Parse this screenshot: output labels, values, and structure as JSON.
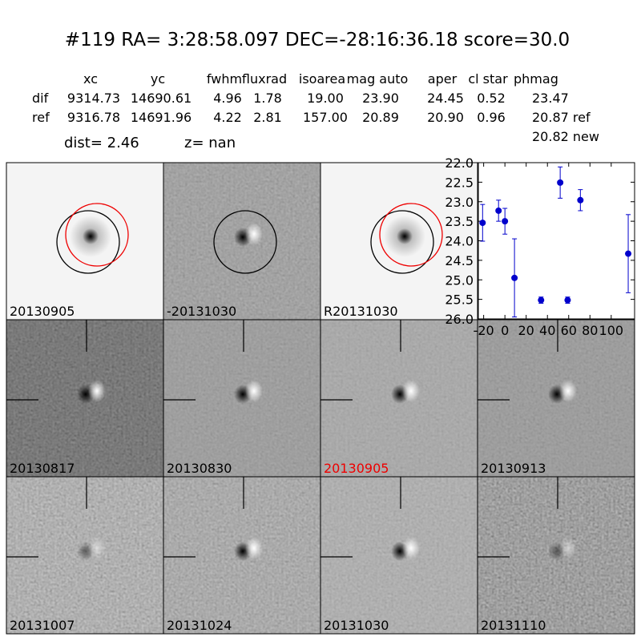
{
  "title": "#119   RA= 3:28:58.097 DEC=-28:16:36.18       score=30.0",
  "table": {
    "header": [
      "xc",
      "yc",
      "fwhm",
      "fluxrad",
      "isoarea",
      "mag auto",
      "aper",
      "cl star",
      "phmag"
    ],
    "rows": [
      [
        "dif",
        "9314.73",
        "14690.61",
        "4.96",
        "1.78",
        "19.00",
        "23.90",
        "24.45",
        "0.52",
        "23.47"
      ],
      [
        "ref",
        "9316.78",
        "14691.96",
        "4.22",
        "2.81",
        "157.00",
        "20.89",
        "20.90",
        "0.96",
        "20.87 ref"
      ]
    ],
    "extra": "20.82 new"
  },
  "dist": "dist=  2.46",
  "z": "z=   nan",
  "panels": [
    "20130905",
    "-20131030",
    "R20131030",
    "20130817",
    "20130830",
    "20130905",
    "20130913",
    "20131007",
    "20131024",
    "20131030",
    "20131110"
  ],
  "chart_data": {
    "type": "scatter",
    "x": [
      -21,
      -6,
      0,
      9,
      34,
      52,
      59,
      71,
      116
    ],
    "values": [
      23.54,
      23.23,
      23.5,
      24.95,
      25.52,
      22.51,
      25.52,
      22.96,
      24.33
    ],
    "errors": [
      0.47,
      0.27,
      0.33,
      1.0,
      0.08,
      0.4,
      0.08,
      0.27,
      1.0
    ],
    "color": "#0000cc",
    "xlim": [
      -25,
      122
    ],
    "ylim": [
      26.0,
      22.0
    ],
    "xticks": [
      -20,
      0,
      20,
      40,
      60,
      80,
      100
    ],
    "yticks": [
      {
        "value": 22,
        "label": "22.0"
      },
      {
        "value": 22.5,
        "label": "22.5"
      },
      {
        "value": 23,
        "label": "23.0"
      },
      {
        "value": 23.5,
        "label": "23.5"
      },
      {
        "value": 24,
        "label": "24.0"
      },
      {
        "value": 24.5,
        "label": "24.5"
      },
      {
        "value": 25,
        "label": "25.0"
      },
      {
        "value": 25.5,
        "label": "25.5"
      },
      {
        "value": 26,
        "label": "26.0"
      }
    ]
  }
}
